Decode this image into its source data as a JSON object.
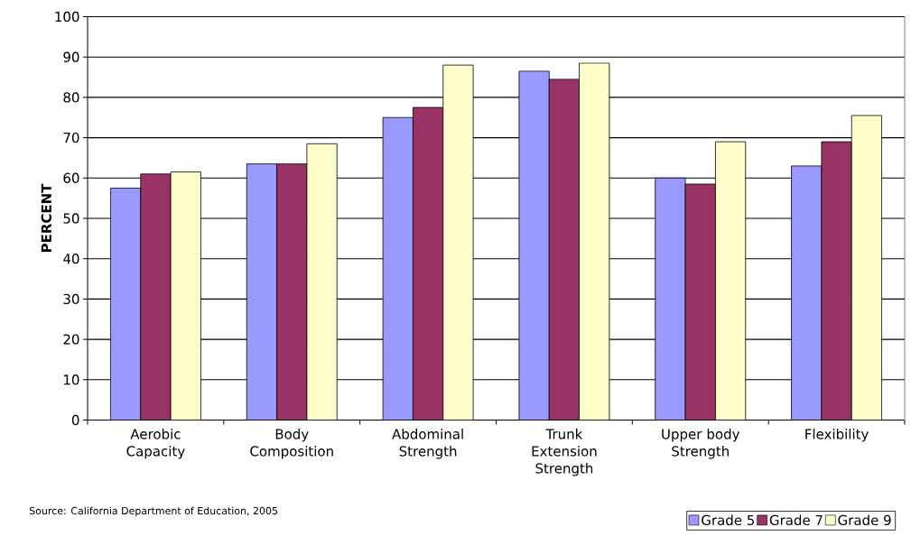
{
  "chart_data": {
    "type": "bar",
    "ylabel": "PERCENT",
    "categories": [
      "Aerobic Capacity",
      "Body Composition",
      "Abdominal Strength",
      "Trunk Extension Strength",
      "Upper body Strength",
      "Flexibility"
    ],
    "series": [
      {
        "name": "Grade 5",
        "color": "#9999ff",
        "values": [
          57.5,
          63.5,
          75,
          86.5,
          60,
          63
        ]
      },
      {
        "name": "Grade 7",
        "color": "#993366",
        "values": [
          61,
          63.5,
          77.5,
          84.5,
          58.5,
          69
        ]
      },
      {
        "name": "Grade 9",
        "color": "#ffffcc",
        "values": [
          61.5,
          68.5,
          88,
          88.5,
          69,
          75.5
        ]
      }
    ],
    "ylim": [
      0,
      100
    ],
    "yticks": [
      0,
      10,
      20,
      30,
      40,
      50,
      60,
      70,
      80,
      90,
      100
    ],
    "grid": "y",
    "legend": "bottom right",
    "annotations": [
      "Source: California Department of Education, 2005"
    ]
  }
}
